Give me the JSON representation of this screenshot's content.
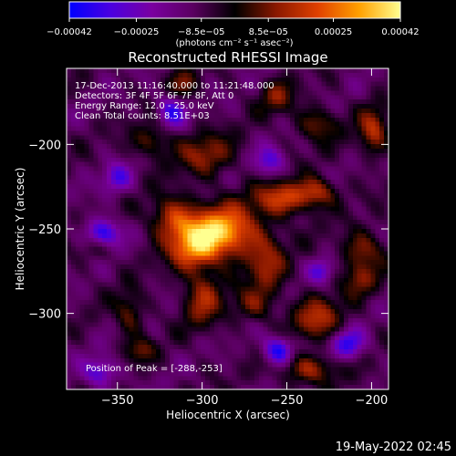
{
  "chart_data": {
    "type": "heatmap",
    "title": "Reconstructed RHESSI Image",
    "xlabel": "Heliocentric X (arcsec)",
    "ylabel": "Heliocentric Y (arcsec)",
    "xlim": [
      -380,
      -190
    ],
    "ylim": [
      -345,
      -155
    ],
    "x_ticks": [
      {
        "value": -350,
        "label": "−350"
      },
      {
        "value": -300,
        "label": "−300"
      },
      {
        "value": -250,
        "label": "−250"
      },
      {
        "value": -200,
        "label": "−200"
      }
    ],
    "y_ticks": [
      {
        "value": -200,
        "label": "−200"
      },
      {
        "value": -250,
        "label": "−250"
      },
      {
        "value": -300,
        "label": "−300"
      }
    ],
    "colorbar": {
      "min": -0.00042,
      "max": 0.00042,
      "ticks": [
        {
          "value": -0.00042,
          "label": "−0.00042"
        },
        {
          "value": -0.00025,
          "label": "−0.00025"
        },
        {
          "value": -8.5e-05,
          "label": "−8.5e−05"
        },
        {
          "value": 8.5e-05,
          "label": "8.5e−05"
        },
        {
          "value": 0.00025,
          "label": "0.00025"
        },
        {
          "value": 0.00042,
          "label": "0.00042"
        }
      ],
      "units": "(photons cm⁻² s⁻¹ asec⁻²)",
      "colors": [
        "#0000ff",
        "#4b00e0",
        "#7a00a0",
        "#5a0060",
        "#000000",
        "#8a1800",
        "#e04000",
        "#ffa000",
        "#ffff90"
      ]
    },
    "annotations": {
      "time_range": "17-Dec-2013 11:16:40.000 to 11:21:48.000",
      "detectors": "Detectors: 3F 4F 5F 6F 7F 8F, Att 0",
      "energy_range": "Energy Range: 12.0 - 25.0 keV",
      "clean": "Clean    Total counts: 8.51E+03",
      "peak_position": "Position of Peak = [-288,-253]"
    },
    "peak": {
      "x": -288,
      "y": -253
    },
    "emission_sources": [
      {
        "x": -290,
        "y": -252,
        "sx": 16,
        "sy": 11,
        "amp": 1.05
      },
      {
        "x": -306,
        "y": -262,
        "sx": 10,
        "sy": 9,
        "amp": 0.55
      },
      {
        "x": -318,
        "y": -243,
        "sx": 9,
        "sy": 9,
        "amp": 0.5
      },
      {
        "x": -300,
        "y": -291,
        "sx": 8,
        "sy": 12,
        "amp": 0.5
      },
      {
        "x": -252,
        "y": -232,
        "sx": 12,
        "sy": 7,
        "amp": 0.65
      },
      {
        "x": -232,
        "y": -228,
        "sx": 8,
        "sy": 6,
        "amp": 0.5
      },
      {
        "x": -262,
        "y": -272,
        "sx": 8,
        "sy": 12,
        "amp": 0.45
      },
      {
        "x": -232,
        "y": -303,
        "sx": 10,
        "sy": 9,
        "amp": 0.55
      },
      {
        "x": -238,
        "y": -333,
        "sx": 12,
        "sy": 6,
        "amp": 0.5
      },
      {
        "x": -298,
        "y": -206,
        "sx": 12,
        "sy": 9,
        "amp": 0.45
      },
      {
        "x": -330,
        "y": -198,
        "sx": 8,
        "sy": 7,
        "amp": 0.4
      },
      {
        "x": -256,
        "y": -172,
        "sx": 7,
        "sy": 7,
        "amp": 0.4
      },
      {
        "x": -232,
        "y": -188,
        "sx": 9,
        "sy": 7,
        "amp": 0.4
      },
      {
        "x": -199,
        "y": -192,
        "sx": 6,
        "sy": 10,
        "amp": 0.55
      },
      {
        "x": -343,
        "y": -300,
        "sx": 6,
        "sy": 9,
        "amp": 0.4
      },
      {
        "x": -336,
        "y": -322,
        "sx": 6,
        "sy": 5,
        "amp": 0.35
      },
      {
        "x": -270,
        "y": -295,
        "sx": 9,
        "sy": 7,
        "amp": 0.35
      },
      {
        "x": -205,
        "y": -262,
        "sx": 9,
        "sy": 8,
        "amp": 0.45
      },
      {
        "x": -207,
        "y": -280,
        "sx": 7,
        "sy": 7,
        "amp": 0.4
      },
      {
        "x": -362,
        "y": -260,
        "sx": 7,
        "sy": 6,
        "amp": 0.3
      },
      {
        "x": -312,
        "y": -165,
        "sx": 7,
        "sy": 7,
        "amp": 0.35
      }
    ],
    "negative_regions": [
      {
        "x": -359,
        "y": -253,
        "sx": 7,
        "sy": 6,
        "amp": 0.8
      },
      {
        "x": -255,
        "y": -322,
        "sx": 6,
        "sy": 6,
        "amp": 0.75
      },
      {
        "x": -318,
        "y": -180,
        "sx": 6,
        "sy": 7,
        "amp": 0.6
      },
      {
        "x": -260,
        "y": -210,
        "sx": 6,
        "sy": 6,
        "amp": 0.5
      },
      {
        "x": -214,
        "y": -318,
        "sx": 7,
        "sy": 6,
        "amp": 0.6
      },
      {
        "x": -350,
        "y": -220,
        "sx": 6,
        "sy": 6,
        "amp": 0.5
      },
      {
        "x": -230,
        "y": -275,
        "sx": 5,
        "sy": 5,
        "amp": 0.45
      },
      {
        "x": -360,
        "y": -335,
        "sx": 7,
        "sy": 6,
        "amp": 0.55
      }
    ]
  },
  "timestamp": "19-May-2022 02:45"
}
